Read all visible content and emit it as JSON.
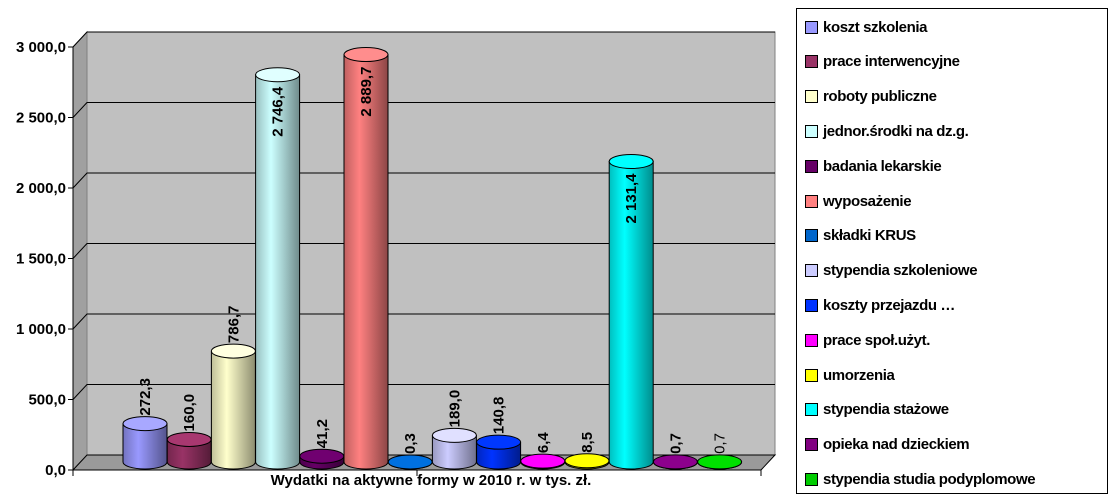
{
  "chart_data": {
    "type": "bar",
    "title": "",
    "xlabel": "Wydatki na aktywne formy w 2010 r. w tys. zł.",
    "ylabel": "",
    "ylim": [
      0,
      3000
    ],
    "yticks": [
      "0,0",
      "500,0",
      "1 000,0",
      "1 500,0",
      "2 000,0",
      "2 500,0",
      "3 000,0"
    ],
    "grid": true,
    "legend_position": "right",
    "series": [
      {
        "name": "koszt szkolenia",
        "value": 272.3,
        "label": "272,3",
        "color": "#9999ff"
      },
      {
        "name": "prace interwencyjne",
        "value": 160.0,
        "label": "160,0",
        "color": "#993366"
      },
      {
        "name": "roboty publiczne",
        "value": 786.7,
        "label": "786,7",
        "color": "#ffffcc"
      },
      {
        "name": "jednor.środki na dz.g.",
        "value": 2746.4,
        "label": "2 746,4",
        "color": "#ccffff"
      },
      {
        "name": "badania lekarskie",
        "value": 41.2,
        "label": "41,2",
        "color": "#660066"
      },
      {
        "name": "wyposażenie",
        "value": 2889.7,
        "label": "2 889,7",
        "color": "#ff8080"
      },
      {
        "name": "składki KRUS",
        "value": 0.3,
        "label": "0,3",
        "color": "#0066cc"
      },
      {
        "name": "stypendia szkoleniowe",
        "value": 189.0,
        "label": "189,0",
        "color": "#ccccff"
      },
      {
        "name": "koszty przejazdu …",
        "value": 140.8,
        "label": "140,8",
        "color": "#0033ff"
      },
      {
        "name": "prace społ.użyt.",
        "value": 6.4,
        "label": "6,4",
        "color": "#ff00ff"
      },
      {
        "name": "umorzenia",
        "value": 8.5,
        "label": "8,5",
        "color": "#ffff00"
      },
      {
        "name": "stypendia stażowe",
        "value": 2131.4,
        "label": "2 131,4",
        "color": "#00ffff"
      },
      {
        "name": "opieka nad dzieckiem",
        "value": 0.7,
        "label": "0,7",
        "color": "#800080"
      },
      {
        "name": "stypendia studia podyplomowe",
        "value": 0.7,
        "label": "0,7",
        "color": "#00cc00"
      }
    ]
  }
}
